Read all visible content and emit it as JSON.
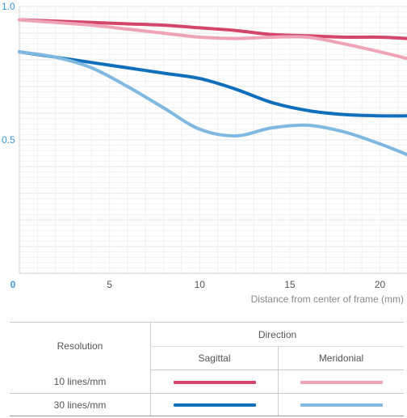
{
  "chart_data": {
    "type": "line",
    "title": "",
    "xlabel": "Distance from center of frame (mm)",
    "ylabel": "",
    "xlim": [
      0,
      21.5
    ],
    "ylim": [
      0,
      1.0
    ],
    "x_ticks": [
      "0",
      "5",
      "10",
      "15",
      "20"
    ],
    "y_ticks": [
      "0",
      "0.5",
      "1.0"
    ],
    "grid": true,
    "series": [
      {
        "x": [
          0,
          2,
          4,
          6,
          8,
          10,
          12,
          14,
          16,
          18,
          20,
          21.5
        ],
        "y": [
          0.95,
          0.945,
          0.94,
          0.935,
          0.93,
          0.92,
          0.91,
          0.895,
          0.89,
          0.885,
          0.885,
          0.88
        ],
        "color": "#d4456a"
      },
      {
        "x": [
          0,
          2,
          4,
          6,
          8,
          10,
          12,
          14,
          16,
          18,
          20,
          21.5
        ],
        "y": [
          0.95,
          0.94,
          0.93,
          0.915,
          0.9,
          0.885,
          0.88,
          0.885,
          0.885,
          0.86,
          0.83,
          0.805
        ],
        "color": "#eea3b6"
      },
      {
        "x": [
          0,
          2,
          4,
          6,
          8,
          10,
          12,
          14,
          16,
          18,
          20,
          21.5
        ],
        "y": [
          0.83,
          0.81,
          0.79,
          0.77,
          0.75,
          0.73,
          0.69,
          0.64,
          0.61,
          0.595,
          0.59,
          0.59
        ],
        "color": "#0f6fba"
      },
      {
        "x": [
          0,
          2,
          4,
          6,
          8,
          10,
          12,
          14,
          16,
          18,
          20,
          21.5
        ],
        "y": [
          0.83,
          0.81,
          0.77,
          0.7,
          0.62,
          0.54,
          0.515,
          0.545,
          0.555,
          0.53,
          0.485,
          0.445
        ],
        "color": "#7fb9e2"
      }
    ]
  },
  "legend": {
    "resolution_header": "Resolution",
    "direction_header": "Direction",
    "sagittal": "Sagittal",
    "meridional": "Meridonial",
    "rows": [
      {
        "label": "10 lines/mm",
        "sagittal_color": "#d4456a",
        "meridional_color": "#eea3b6"
      },
      {
        "label": "30 lines/mm",
        "sagittal_color": "#0f6fba",
        "meridional_color": "#7fb9e2"
      }
    ]
  }
}
